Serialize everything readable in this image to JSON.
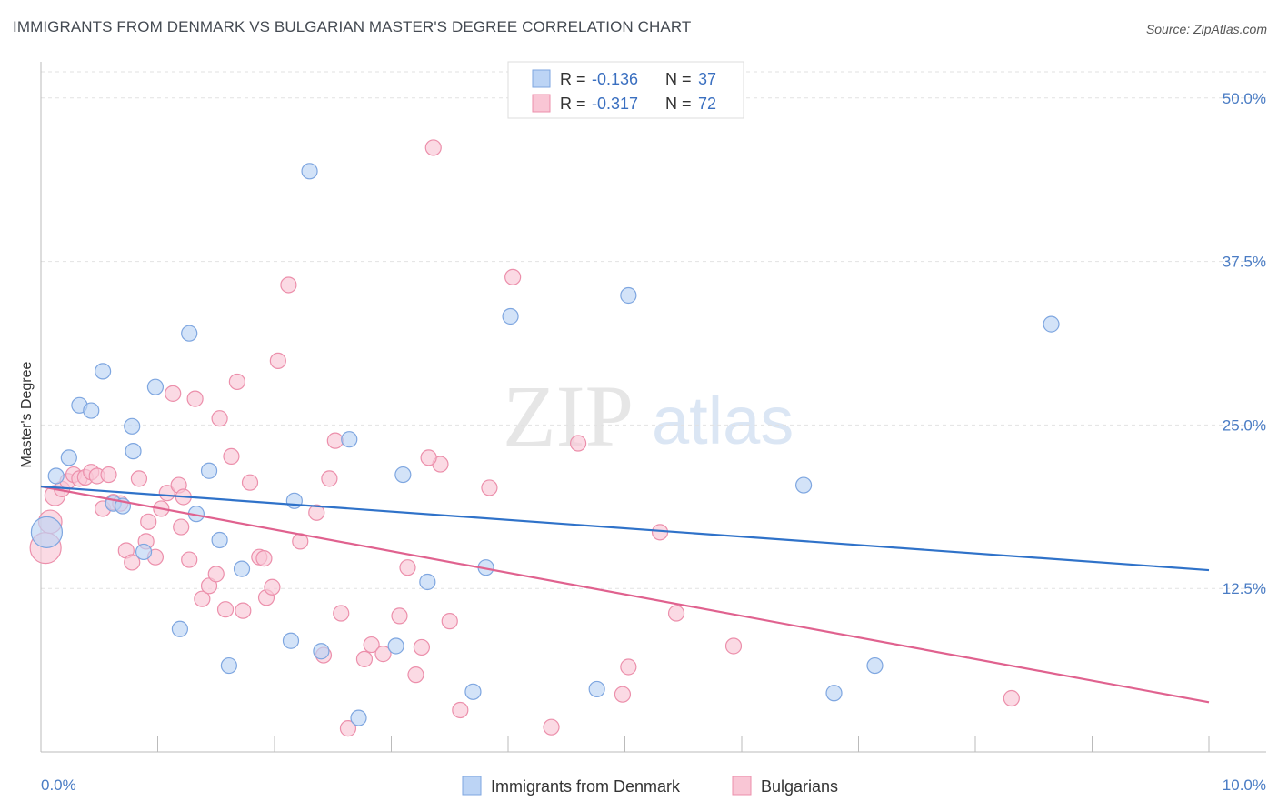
{
  "title": "IMMIGRANTS FROM DENMARK VS BULGARIAN MASTER'S DEGREE CORRELATION CHART",
  "source": "Source: ZipAtlas.com",
  "watermark": {
    "zip": "ZIP",
    "atlas": "atlas"
  },
  "colors": {
    "denmark_fill": "#bcd4f5",
    "denmark_stroke": "#7ea6e0",
    "denmark_line": "#2f72c9",
    "bulgarians_fill": "#f9c6d5",
    "bulgarians_stroke": "#ec8fab",
    "bulgarians_line": "#e0628f"
  },
  "legend": {
    "rows": [
      {
        "r_label": "R = ",
        "r_value": "-0.136",
        "n_label": "N = ",
        "n_value": "37"
      },
      {
        "r_label": "R = ",
        "r_value": "-0.317",
        "n_label": "N = ",
        "n_value": "72"
      }
    ]
  },
  "chart_data": {
    "type": "scatter",
    "title": "IMMIGRANTS FROM DENMARK VS BULGARIAN MASTER'S DEGREE CORRELATION CHART",
    "ylabel": "Master's Degree",
    "xlim": [
      0,
      10
    ],
    "ylim": [
      0,
      52
    ],
    "x_tick_labels": [
      "0.0%",
      "10.0%"
    ],
    "y_ticks": [
      12.5,
      25.0,
      37.5,
      50.0
    ],
    "y_tick_labels": [
      "12.5%",
      "25.0%",
      "37.5%",
      "50.0%"
    ],
    "grid": true,
    "legend_position": "top-center",
    "series": [
      {
        "name": "Immigrants from Denmark",
        "trend": [
          [
            0,
            20.3
          ],
          [
            10,
            13.9
          ]
        ],
        "points": [
          {
            "x": 0.05,
            "y": 16.8,
            "s": 2
          },
          {
            "x": 0.13,
            "y": 21.1
          },
          {
            "x": 0.24,
            "y": 22.5
          },
          {
            "x": 0.33,
            "y": 26.5
          },
          {
            "x": 0.43,
            "y": 26.1
          },
          {
            "x": 0.53,
            "y": 29.1
          },
          {
            "x": 0.62,
            "y": 19.0
          },
          {
            "x": 0.7,
            "y": 18.8
          },
          {
            "x": 0.78,
            "y": 24.9
          },
          {
            "x": 0.88,
            "y": 15.3
          },
          {
            "x": 0.98,
            "y": 27.9
          },
          {
            "x": 1.19,
            "y": 9.4
          },
          {
            "x": 1.27,
            "y": 32.0
          },
          {
            "x": 1.33,
            "y": 18.2
          },
          {
            "x": 1.44,
            "y": 21.5
          },
          {
            "x": 1.53,
            "y": 16.2
          },
          {
            "x": 1.61,
            "y": 6.6
          },
          {
            "x": 1.72,
            "y": 14.0
          },
          {
            "x": 2.14,
            "y": 8.5
          },
          {
            "x": 2.17,
            "y": 19.2
          },
          {
            "x": 2.3,
            "y": 44.4
          },
          {
            "x": 2.4,
            "y": 7.7
          },
          {
            "x": 2.64,
            "y": 23.9
          },
          {
            "x": 2.72,
            "y": 2.6
          },
          {
            "x": 3.04,
            "y": 8.1
          },
          {
            "x": 3.1,
            "y": 21.2
          },
          {
            "x": 3.31,
            "y": 13.0
          },
          {
            "x": 3.7,
            "y": 4.6
          },
          {
            "x": 3.81,
            "y": 14.1
          },
          {
            "x": 4.02,
            "y": 33.3
          },
          {
            "x": 4.76,
            "y": 4.8
          },
          {
            "x": 5.03,
            "y": 34.9
          },
          {
            "x": 6.53,
            "y": 20.4
          },
          {
            "x": 6.79,
            "y": 4.5
          },
          {
            "x": 7.14,
            "y": 6.6
          },
          {
            "x": 8.65,
            "y": 32.7
          },
          {
            "x": 0.79,
            "y": 23.0
          }
        ]
      },
      {
        "name": "Bulgarians",
        "trend": [
          [
            0,
            20.3
          ],
          [
            10,
            3.8
          ]
        ],
        "points": [
          {
            "x": 0.04,
            "y": 15.6,
            "s": 2
          },
          {
            "x": 0.08,
            "y": 17.6,
            "s": 1.5
          },
          {
            "x": 0.12,
            "y": 19.6,
            "s": 1.3
          },
          {
            "x": 0.18,
            "y": 20.1
          },
          {
            "x": 0.23,
            "y": 20.7
          },
          {
            "x": 0.28,
            "y": 21.2
          },
          {
            "x": 0.33,
            "y": 20.9
          },
          {
            "x": 0.38,
            "y": 21.0
          },
          {
            "x": 0.43,
            "y": 21.4
          },
          {
            "x": 0.48,
            "y": 21.1
          },
          {
            "x": 0.53,
            "y": 18.6
          },
          {
            "x": 0.58,
            "y": 21.2
          },
          {
            "x": 0.62,
            "y": 19.1
          },
          {
            "x": 0.68,
            "y": 19.0
          },
          {
            "x": 0.73,
            "y": 15.4
          },
          {
            "x": 0.78,
            "y": 14.5
          },
          {
            "x": 0.84,
            "y": 20.9
          },
          {
            "x": 0.9,
            "y": 16.1
          },
          {
            "x": 0.92,
            "y": 17.6
          },
          {
            "x": 0.98,
            "y": 14.9
          },
          {
            "x": 1.03,
            "y": 18.6
          },
          {
            "x": 1.08,
            "y": 19.8
          },
          {
            "x": 1.13,
            "y": 27.4
          },
          {
            "x": 1.18,
            "y": 20.4
          },
          {
            "x": 1.22,
            "y": 19.5
          },
          {
            "x": 1.27,
            "y": 14.7
          },
          {
            "x": 1.32,
            "y": 27.0
          },
          {
            "x": 1.38,
            "y": 11.7
          },
          {
            "x": 1.44,
            "y": 12.7
          },
          {
            "x": 1.5,
            "y": 13.6
          },
          {
            "x": 1.53,
            "y": 25.5
          },
          {
            "x": 1.58,
            "y": 10.9
          },
          {
            "x": 1.63,
            "y": 22.6
          },
          {
            "x": 1.68,
            "y": 28.3
          },
          {
            "x": 1.73,
            "y": 10.8
          },
          {
            "x": 1.79,
            "y": 20.6
          },
          {
            "x": 1.87,
            "y": 14.9
          },
          {
            "x": 1.93,
            "y": 11.8
          },
          {
            "x": 1.98,
            "y": 12.6
          },
          {
            "x": 2.03,
            "y": 29.9
          },
          {
            "x": 2.12,
            "y": 35.7
          },
          {
            "x": 2.22,
            "y": 16.1
          },
          {
            "x": 2.36,
            "y": 18.3
          },
          {
            "x": 2.42,
            "y": 7.4
          },
          {
            "x": 2.47,
            "y": 20.9
          },
          {
            "x": 2.52,
            "y": 23.8
          },
          {
            "x": 2.63,
            "y": 1.8
          },
          {
            "x": 2.77,
            "y": 7.1
          },
          {
            "x": 2.83,
            "y": 8.2
          },
          {
            "x": 2.93,
            "y": 7.5
          },
          {
            "x": 3.07,
            "y": 10.4
          },
          {
            "x": 3.14,
            "y": 14.1
          },
          {
            "x": 3.21,
            "y": 5.9
          },
          {
            "x": 3.26,
            "y": 8.0
          },
          {
            "x": 3.36,
            "y": 46.2
          },
          {
            "x": 3.42,
            "y": 22.0
          },
          {
            "x": 3.5,
            "y": 10.0
          },
          {
            "x": 3.59,
            "y": 3.2
          },
          {
            "x": 3.84,
            "y": 20.2
          },
          {
            "x": 4.04,
            "y": 36.3
          },
          {
            "x": 4.37,
            "y": 1.9
          },
          {
            "x": 4.6,
            "y": 23.6
          },
          {
            "x": 4.98,
            "y": 4.4
          },
          {
            "x": 5.03,
            "y": 6.5
          },
          {
            "x": 5.3,
            "y": 16.8
          },
          {
            "x": 5.44,
            "y": 10.6
          },
          {
            "x": 5.93,
            "y": 8.1
          },
          {
            "x": 8.31,
            "y": 4.1
          },
          {
            "x": 1.91,
            "y": 14.8
          },
          {
            "x": 2.57,
            "y": 10.6
          },
          {
            "x": 3.32,
            "y": 22.5
          },
          {
            "x": 1.2,
            "y": 17.2
          }
        ]
      }
    ]
  }
}
